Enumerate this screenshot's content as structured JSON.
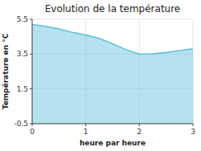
{
  "chart_data": {
    "type": "area",
    "title": "Evolution de la température",
    "x_label": "heure par heure",
    "y_label": "Température en °C",
    "x": [
      0,
      0.25,
      0.5,
      0.75,
      1.0,
      1.25,
      1.5,
      1.75,
      2.0,
      2.25,
      2.5,
      2.75,
      3.0
    ],
    "values": [
      5.2,
      5.1,
      4.95,
      4.75,
      4.6,
      4.4,
      4.1,
      3.75,
      3.5,
      3.52,
      3.6,
      3.7,
      3.8
    ],
    "color": "#5bbfda",
    "xlim": [
      0,
      3
    ],
    "ylim": [
      -0.5,
      5.5
    ],
    "xticks": [
      0,
      1,
      2,
      3
    ],
    "yticks": [
      -0.5,
      1.5,
      3.5,
      5.5
    ],
    "grid": true
  }
}
